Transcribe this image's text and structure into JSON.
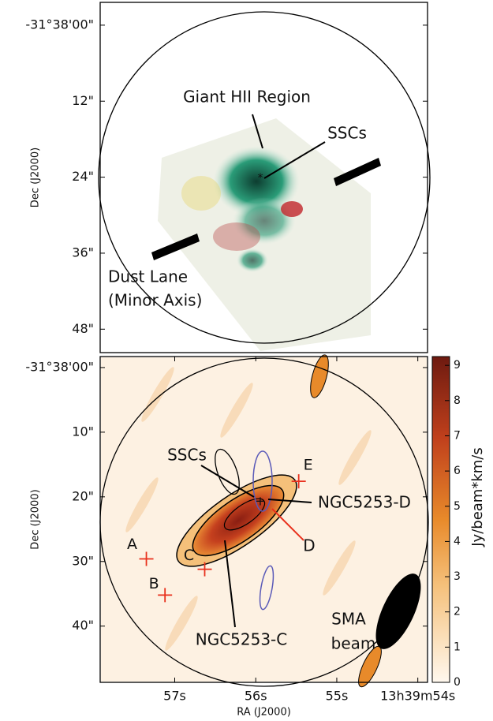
{
  "chart_data": [
    {
      "type": "image",
      "ylabel": "Dec (J2000)",
      "ylim": [
        -3.6,
        51.7
      ],
      "yticks": [
        {
          "value": 0,
          "label": "-31°38'00\""
        },
        {
          "value": 12,
          "label": "12\""
        },
        {
          "value": 24,
          "label": "24\""
        },
        {
          "value": 36,
          "label": "36\""
        },
        {
          "value": 48,
          "label": "48\""
        }
      ],
      "annotations": [
        "Giant HII Region",
        "SSCs",
        "Dust Lane",
        "(Minor Axis)"
      ]
    },
    {
      "type": "image",
      "xlabel": "RA (J2000)",
      "ylabel": "Dec (J2000)",
      "xlim": [
        57.92,
        53.88
      ],
      "ylim": [
        -1.7,
        48.7
      ],
      "xticks": [
        {
          "value": 57,
          "label": "57s"
        },
        {
          "value": 56,
          "label": "56s"
        },
        {
          "value": 55,
          "label": "55s"
        },
        {
          "value": 54,
          "label": "13h39m54s"
        }
      ],
      "yticks": [
        {
          "value": 0,
          "label": "-31°38'00\""
        },
        {
          "value": 10,
          "label": "10\""
        },
        {
          "value": 20,
          "label": "20\""
        },
        {
          "value": 30,
          "label": "30\""
        },
        {
          "value": 40,
          "label": "40\""
        }
      ],
      "marker_color": "#e8301c",
      "markers": [
        {
          "label": "A",
          "x": 57.35,
          "y": 29.6
        },
        {
          "label": "B",
          "x": 57.12,
          "y": 35.2
        },
        {
          "label": "C",
          "x": 56.63,
          "y": 31.2
        },
        {
          "label": "E",
          "x": 55.47,
          "y": 17.6
        }
      ],
      "annotations": [
        "SSCs",
        "NGC5253-D",
        "NGC5253-C",
        "D",
        "SMA",
        "beam"
      ],
      "colorbar": {
        "label": "Jy/beam*km/s",
        "lim": [
          0,
          9.25
        ],
        "ticks": [
          0,
          1,
          2,
          3,
          4,
          5,
          6,
          7,
          8,
          9
        ]
      }
    }
  ]
}
